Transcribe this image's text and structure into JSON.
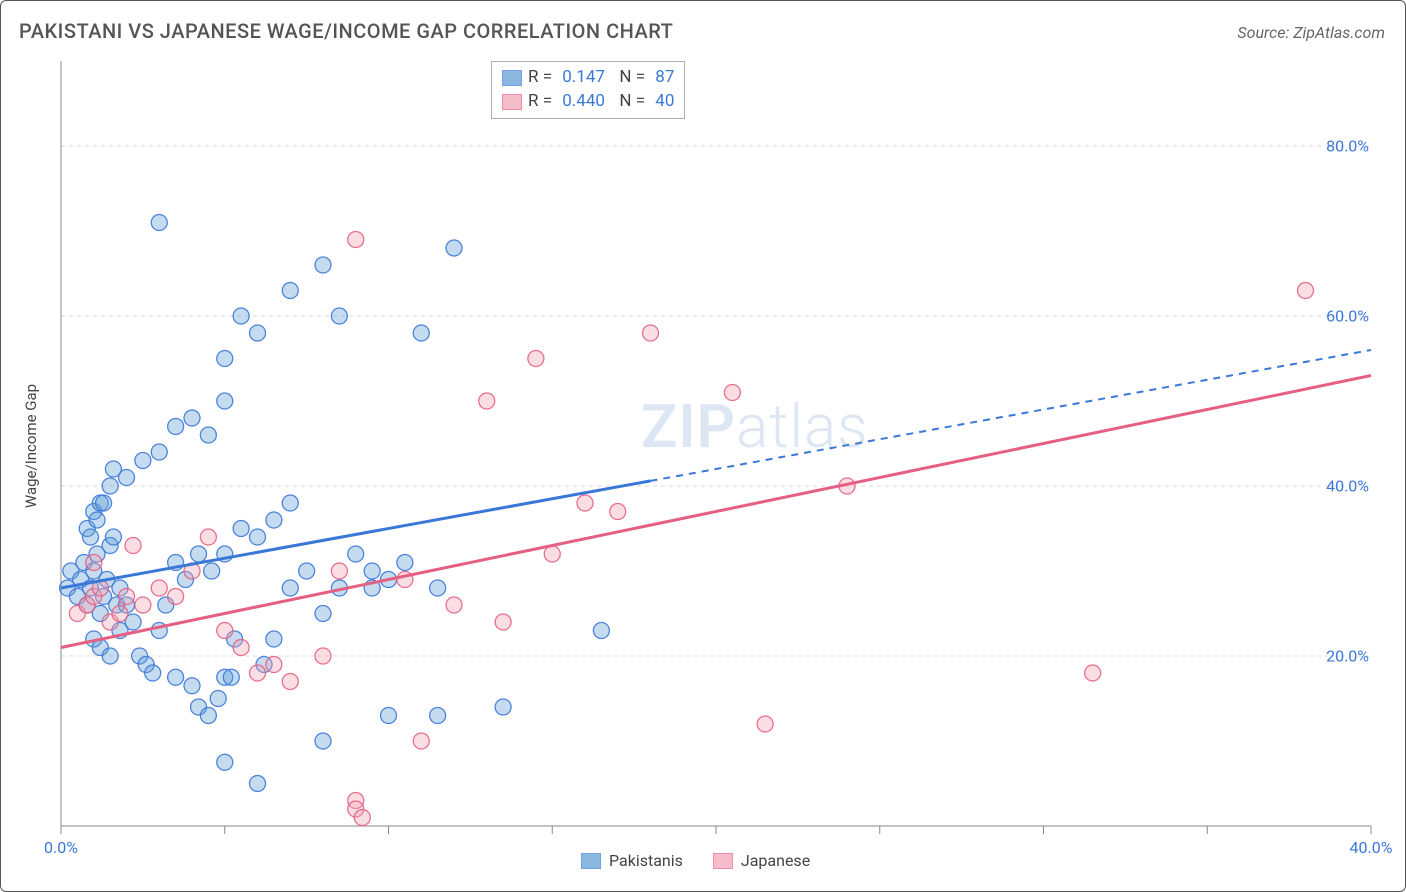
{
  "title": "PAKISTANI VS JAPANESE WAGE/INCOME GAP CORRELATION CHART",
  "source": "Source: ZipAtlas.com",
  "ylabel": "Wage/Income Gap",
  "watermark": "ZIPatlas",
  "chart": {
    "type": "scatter",
    "background_color": "#ffffff",
    "grid_color": "#d9d9d9",
    "axis_color": "#888888",
    "tick_label_color": "#3a78d8",
    "xlim": [
      0,
      40
    ],
    "ylim": [
      0,
      90
    ],
    "x_tick_positions": [
      0,
      5,
      10,
      15,
      20,
      25,
      30,
      35,
      40
    ],
    "x_tick_labels": {
      "0": "0.0%",
      "40": "40.0%"
    },
    "y_grid_positions": [
      20,
      40,
      60,
      80
    ],
    "y_tick_labels": {
      "20": "20.0%",
      "40": "40.0%",
      "60": "60.0%",
      "80": "80.0%"
    },
    "marker_radius": 8,
    "marker_fill_opacity": 0.35,
    "marker_stroke_opacity": 0.9,
    "series": [
      {
        "name": "Pakistanis",
        "color": "#5a9bd5",
        "stroke": "#3a78d8",
        "trend": {
          "x1": 0,
          "y1": 28,
          "x2": 40,
          "y2": 56,
          "solid_until_x": 18,
          "stroke_width": 3
        },
        "R": "0.147",
        "N": "87",
        "points": [
          [
            0.2,
            28
          ],
          [
            0.3,
            30
          ],
          [
            0.5,
            27
          ],
          [
            0.6,
            29
          ],
          [
            0.7,
            31
          ],
          [
            0.8,
            26
          ],
          [
            0.9,
            28
          ],
          [
            1.0,
            30
          ],
          [
            1.1,
            32
          ],
          [
            1.2,
            25
          ],
          [
            1.3,
            27
          ],
          [
            1.4,
            29
          ],
          [
            1.5,
            33
          ],
          [
            1.6,
            34
          ],
          [
            1.7,
            26
          ],
          [
            1.8,
            28
          ],
          [
            0.8,
            35
          ],
          [
            1.0,
            37
          ],
          [
            1.2,
            38
          ],
          [
            1.5,
            40
          ],
          [
            2.0,
            41
          ],
          [
            2.5,
            43
          ],
          [
            3.0,
            44
          ],
          [
            3.5,
            47
          ],
          [
            4.0,
            48
          ],
          [
            4.5,
            46
          ],
          [
            5.0,
            50
          ],
          [
            5.5,
            60
          ],
          [
            3.0,
            71
          ],
          [
            5.0,
            55
          ],
          [
            6.0,
            58
          ],
          [
            7.0,
            63
          ],
          [
            8.0,
            66
          ],
          [
            8.5,
            60
          ],
          [
            9.0,
            32
          ],
          [
            9.5,
            28
          ],
          [
            10.0,
            29
          ],
          [
            11.0,
            58
          ],
          [
            12.0,
            68
          ],
          [
            3.5,
            17.5
          ],
          [
            4.0,
            16.5
          ],
          [
            4.2,
            14
          ],
          [
            4.5,
            13
          ],
          [
            4.8,
            15
          ],
          [
            5.0,
            17.5
          ],
          [
            5.2,
            17.5
          ],
          [
            5.3,
            22
          ],
          [
            6.2,
            19
          ],
          [
            6.5,
            22
          ],
          [
            7.0,
            28
          ],
          [
            8.0,
            25
          ],
          [
            10.0,
            13
          ],
          [
            11.5,
            13
          ],
          [
            13.5,
            14
          ],
          [
            5.0,
            7.5
          ],
          [
            6.0,
            5
          ],
          [
            8.0,
            10
          ],
          [
            1.0,
            22
          ],
          [
            1.2,
            21
          ],
          [
            1.5,
            20
          ],
          [
            1.8,
            23
          ],
          [
            2.0,
            26
          ],
          [
            2.2,
            24
          ],
          [
            2.4,
            20
          ],
          [
            2.6,
            19
          ],
          [
            2.8,
            18
          ],
          [
            3.0,
            23
          ],
          [
            3.2,
            26
          ],
          [
            3.5,
            31
          ],
          [
            3.8,
            29
          ],
          [
            4.2,
            32
          ],
          [
            4.6,
            30
          ],
          [
            5.0,
            32
          ],
          [
            5.5,
            35
          ],
          [
            6.0,
            34
          ],
          [
            6.5,
            36
          ],
          [
            7.0,
            38
          ],
          [
            7.5,
            30
          ],
          [
            8.5,
            28
          ],
          [
            9.5,
            30
          ],
          [
            10.5,
            31
          ],
          [
            11.5,
            28
          ],
          [
            16.5,
            23
          ],
          [
            0.9,
            34
          ],
          [
            1.1,
            36
          ],
          [
            1.3,
            38
          ],
          [
            1.6,
            42
          ]
        ]
      },
      {
        "name": "Japanese",
        "color": "#f2a0b3",
        "stroke": "#e55f82",
        "trend": {
          "x1": 0,
          "y1": 21,
          "x2": 40,
          "y2": 53,
          "solid_until_x": 40,
          "stroke_width": 3
        },
        "R": "0.440",
        "N": "40",
        "points": [
          [
            0.5,
            25
          ],
          [
            0.8,
            26
          ],
          [
            1.0,
            27
          ],
          [
            1.2,
            28
          ],
          [
            1.5,
            24
          ],
          [
            1.8,
            25
          ],
          [
            2.0,
            27
          ],
          [
            2.5,
            26
          ],
          [
            3.0,
            28
          ],
          [
            3.5,
            27
          ],
          [
            4.0,
            30
          ],
          [
            4.5,
            34
          ],
          [
            5.0,
            23
          ],
          [
            5.5,
            21
          ],
          [
            6.0,
            18
          ],
          [
            6.5,
            19
          ],
          [
            7.0,
            17
          ],
          [
            8.0,
            20
          ],
          [
            8.5,
            30
          ],
          [
            9.0,
            69
          ],
          [
            13.0,
            50
          ],
          [
            14.5,
            55
          ],
          [
            16.0,
            38
          ],
          [
            17.0,
            37
          ],
          [
            18.0,
            58
          ],
          [
            20.5,
            51
          ],
          [
            21.5,
            12
          ],
          [
            9.0,
            3
          ],
          [
            9.0,
            2
          ],
          [
            9.2,
            1
          ],
          [
            10.5,
            29
          ],
          [
            11.0,
            10
          ],
          [
            12.0,
            26
          ],
          [
            13.5,
            24
          ],
          [
            15.0,
            32
          ],
          [
            24.0,
            40
          ],
          [
            31.5,
            18
          ],
          [
            38.0,
            63
          ],
          [
            2.2,
            33
          ],
          [
            1.0,
            31
          ]
        ]
      }
    ],
    "legend_bottom": [
      "Pakistanis",
      "Japanese"
    ]
  }
}
